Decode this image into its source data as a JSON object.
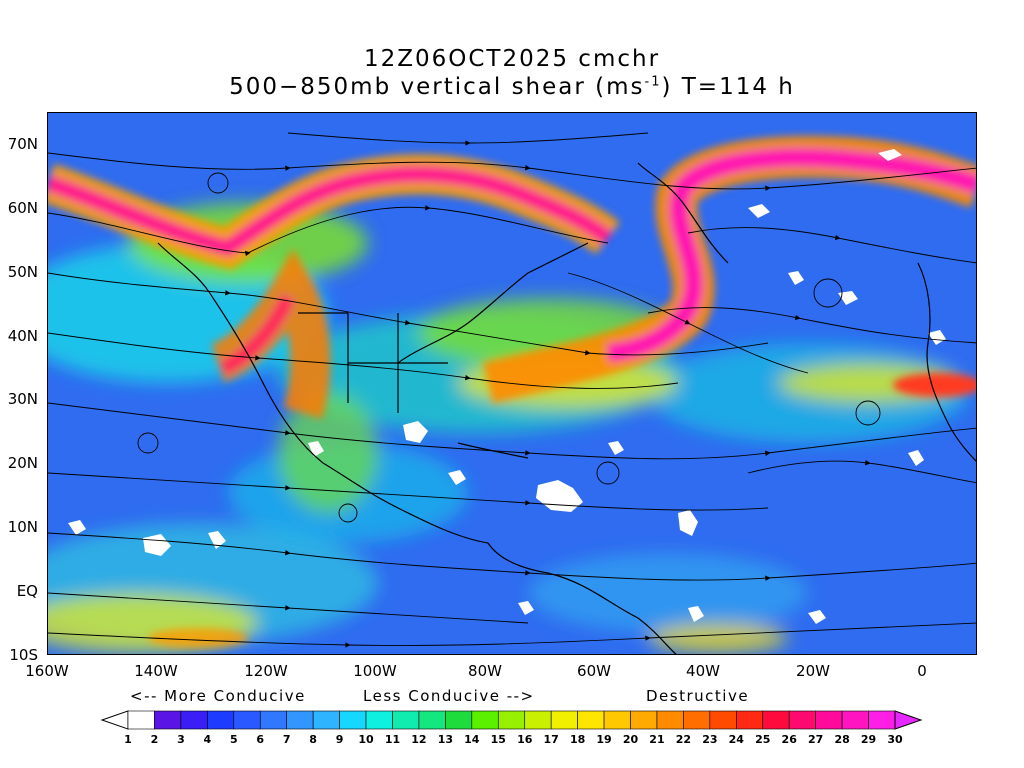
{
  "title": {
    "line1": "12Z06OCT2025 cmchr",
    "line2_prefix": "500−850mb vertical shear (ms",
    "line2_sup": "-1",
    "line2_suffix": ") T=114 h"
  },
  "map": {
    "projection": "lat-lon",
    "lon_range": [
      -160,
      10
    ],
    "lat_range": [
      -10,
      75
    ],
    "y_ticks": [
      "70N",
      "60N",
      "50N",
      "40N",
      "30N",
      "20N",
      "10N",
      "EQ",
      "10S"
    ],
    "x_ticks": [
      "160W",
      "140W",
      "120W",
      "100W",
      "80W",
      "60W",
      "40W",
      "20W",
      "0"
    ],
    "field": "500-850mb vertical shear magnitude with streamlines"
  },
  "legend": {
    "more_conducive": "<-- More Conducive",
    "less_conducive": "Less Conducive -->",
    "destructive": "Destructive",
    "levels": [
      "1",
      "2",
      "3",
      "4",
      "5",
      "6",
      "7",
      "8",
      "9",
      "10",
      "11",
      "12",
      "13",
      "14",
      "15",
      "16",
      "17",
      "18",
      "19",
      "20",
      "21",
      "22",
      "23",
      "24",
      "25",
      "26",
      "27",
      "28",
      "29",
      "30"
    ],
    "colors": [
      "#ffffff",
      "#5a14e6",
      "#3a1ef5",
      "#1e3cff",
      "#2a5aff",
      "#2f78ff",
      "#3296ff",
      "#2fb4ff",
      "#15d7ff",
      "#10f0e0",
      "#10ebb0",
      "#14e680",
      "#1edc3c",
      "#5af000",
      "#96f000",
      "#c8f000",
      "#f0f000",
      "#ffe600",
      "#ffc800",
      "#ffaa00",
      "#ff8c00",
      "#ff6e00",
      "#ff4b00",
      "#ff2a14",
      "#ff0a3c",
      "#ff0a6e",
      "#ff0a9a",
      "#ff14c0",
      "#ff1ee6",
      "#e628ff"
    ]
  }
}
